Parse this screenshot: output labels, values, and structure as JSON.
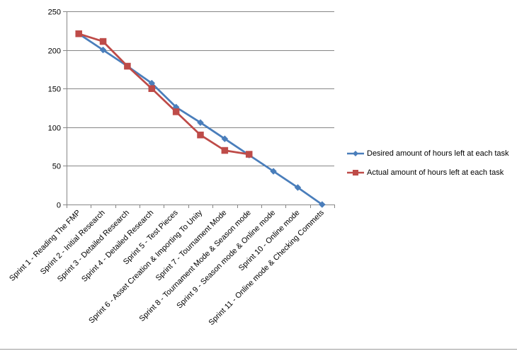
{
  "chart_data": {
    "type": "line",
    "title": "",
    "xlabel": "",
    "ylabel": "",
    "ylim": [
      0,
      250
    ],
    "yticks": [
      "0",
      "50",
      "100",
      "150",
      "200",
      "250"
    ],
    "grid": "horizontal",
    "legend_position": "right",
    "categories": [
      "Sprint 1 - Reading The FMP",
      "Sprint 2 - Initial Research",
      "Sprint 3 - Detailed Research",
      "Sprint 4 - Detailed Research",
      "Sprint 5 - Test Pieces",
      "Sprint 6 - Asset Creation & Importing To Unity",
      "Sprint 7 - Tournament Mode",
      "Sprint 8 - Tournament Mode & Season mode",
      "Sprint 9 - Season mode & Online mode",
      "Sprint 10 - Online mode",
      "Sprint 11 - Online mode & Checking Commets"
    ],
    "series": [
      {
        "name": "Desired amount of hours left at each task",
        "color": "#4a7ebb",
        "marker": "diamond",
        "values": [
          221,
          200,
          179,
          157,
          126,
          106,
          85,
          64,
          43,
          22,
          0
        ]
      },
      {
        "name": "Actual  amount of hours left at each task",
        "color": "#be4b48",
        "marker": "square",
        "values": [
          221,
          211,
          179,
          150,
          120,
          90,
          70,
          65,
          null,
          null,
          null
        ]
      }
    ]
  }
}
